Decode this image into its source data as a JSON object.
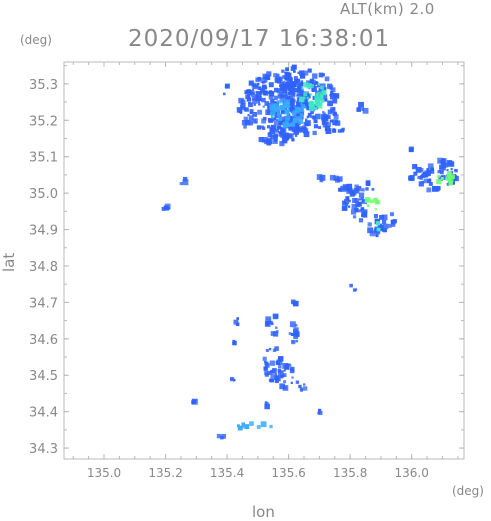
{
  "header": {
    "altitude_label": "ALT(km)  2.0",
    "timestamp": "2020/09/17  16:38:01"
  },
  "axes": {
    "y_unit": "(deg)",
    "x_unit": "(deg)",
    "y_label": "lat",
    "x_label": "lon"
  },
  "chart_data": {
    "type": "heatmap",
    "xlim": [
      134.87,
      136.17
    ],
    "ylim": [
      34.27,
      35.36
    ],
    "x_ticks": [
      "135.0",
      "135.2",
      "135.4",
      "135.6",
      "135.8",
      "136.0"
    ],
    "x_tick_values": [
      135.0,
      135.2,
      135.4,
      135.6,
      135.8,
      136.0
    ],
    "y_ticks": [
      "34.3",
      "34.4",
      "34.5",
      "34.6",
      "34.7",
      "34.8",
      "34.9",
      "35.0",
      "35.1",
      "35.2",
      "35.3"
    ],
    "y_tick_values": [
      34.3,
      34.4,
      34.5,
      34.6,
      34.7,
      34.8,
      34.9,
      35.0,
      35.1,
      35.2,
      35.3
    ],
    "grid": false,
    "colors": {
      "weak": "#2f62ff",
      "moderate": "#38aaff",
      "strong": "#40e8c0",
      "peak": "#70ff70"
    },
    "echo_regions": [
      {
        "lon": 135.56,
        "lat": 35.23,
        "rlon": 0.12,
        "rlat": 0.1,
        "level": "weak"
      },
      {
        "lon": 135.66,
        "lat": 35.25,
        "rlon": 0.1,
        "rlat": 0.09,
        "level": "weak"
      },
      {
        "lon": 135.6,
        "lat": 35.32,
        "rlon": 0.04,
        "rlat": 0.03,
        "level": "weak"
      },
      {
        "lon": 135.6,
        "lat": 35.22,
        "rlon": 0.06,
        "rlat": 0.04,
        "level": "moderate"
      },
      {
        "lon": 135.68,
        "lat": 35.27,
        "rlon": 0.04,
        "rlat": 0.04,
        "level": "strong"
      },
      {
        "lon": 135.49,
        "lat": 35.27,
        "rlon": 0.025,
        "rlat": 0.035,
        "level": "weak"
      },
      {
        "lon": 135.75,
        "lat": 35.19,
        "rlon": 0.035,
        "rlat": 0.03,
        "level": "weak"
      },
      {
        "lon": 135.4,
        "lat": 35.28,
        "rlon": 0.012,
        "rlat": 0.014,
        "level": "weak"
      },
      {
        "lon": 135.84,
        "lat": 35.23,
        "rlon": 0.015,
        "rlat": 0.015,
        "level": "weak"
      },
      {
        "lon": 135.82,
        "lat": 34.97,
        "rlon": 0.04,
        "rlat": 0.05,
        "level": "weak"
      },
      {
        "lon": 135.87,
        "lat": 34.97,
        "rlon": 0.02,
        "rlat": 0.02,
        "level": "peak"
      },
      {
        "lon": 135.89,
        "lat": 34.91,
        "rlon": 0.03,
        "rlat": 0.03,
        "level": "weak"
      },
      {
        "lon": 135.89,
        "lat": 34.91,
        "rlon": 0.012,
        "rlat": 0.012,
        "level": "strong"
      },
      {
        "lon": 135.93,
        "lat": 34.93,
        "rlon": 0.02,
        "rlat": 0.02,
        "level": "weak"
      },
      {
        "lon": 135.79,
        "lat": 35.0,
        "rlon": 0.03,
        "rlat": 0.02,
        "level": "weak"
      },
      {
        "lon": 135.73,
        "lat": 35.04,
        "rlon": 0.04,
        "rlat": 0.01,
        "level": "weak"
      },
      {
        "lon": 136.08,
        "lat": 35.05,
        "rlon": 0.07,
        "rlat": 0.045,
        "level": "weak"
      },
      {
        "lon": 136.11,
        "lat": 35.04,
        "rlon": 0.025,
        "rlat": 0.02,
        "level": "peak"
      },
      {
        "lon": 136.0,
        "lat": 35.06,
        "rlon": 0.02,
        "rlat": 0.02,
        "level": "weak"
      },
      {
        "lon": 136.0,
        "lat": 35.12,
        "rlon": 0.006,
        "rlat": 0.006,
        "level": "weak"
      },
      {
        "lon": 135.87,
        "lat": 35.02,
        "rlon": 0.02,
        "rlat": 0.015,
        "level": "weak"
      },
      {
        "lon": 135.26,
        "lat": 35.03,
        "rlon": 0.015,
        "rlat": 0.01,
        "level": "weak"
      },
      {
        "lon": 135.2,
        "lat": 34.96,
        "rlon": 0.014,
        "rlat": 0.018,
        "level": "weak"
      },
      {
        "lon": 135.81,
        "lat": 34.74,
        "rlon": 0.012,
        "rlat": 0.01,
        "level": "weak"
      },
      {
        "lon": 135.55,
        "lat": 34.53,
        "rlon": 0.03,
        "rlat": 0.05,
        "level": "weak"
      },
      {
        "lon": 135.59,
        "lat": 34.5,
        "rlon": 0.025,
        "rlat": 0.04,
        "level": "weak"
      },
      {
        "lon": 135.62,
        "lat": 34.62,
        "rlon": 0.02,
        "rlat": 0.03,
        "level": "weak"
      },
      {
        "lon": 135.55,
        "lat": 34.64,
        "rlon": 0.02,
        "rlat": 0.03,
        "level": "weak"
      },
      {
        "lon": 135.43,
        "lat": 34.65,
        "rlon": 0.008,
        "rlat": 0.012,
        "level": "weak"
      },
      {
        "lon": 135.42,
        "lat": 34.59,
        "rlon": 0.006,
        "rlat": 0.006,
        "level": "weak"
      },
      {
        "lon": 135.42,
        "lat": 34.49,
        "rlon": 0.006,
        "rlat": 0.006,
        "level": "weak"
      },
      {
        "lon": 135.64,
        "lat": 34.47,
        "rlon": 0.015,
        "rlat": 0.02,
        "level": "weak"
      },
      {
        "lon": 135.47,
        "lat": 34.36,
        "rlon": 0.04,
        "rlat": 0.008,
        "level": "moderate"
      },
      {
        "lon": 135.52,
        "lat": 34.36,
        "rlon": 0.03,
        "rlat": 0.006,
        "level": "moderate"
      },
      {
        "lon": 135.38,
        "lat": 34.33,
        "rlon": 0.01,
        "rlat": 0.006,
        "level": "weak"
      },
      {
        "lon": 135.29,
        "lat": 34.43,
        "rlon": 0.006,
        "rlat": 0.006,
        "level": "weak"
      },
      {
        "lon": 135.53,
        "lat": 34.42,
        "rlon": 0.006,
        "rlat": 0.006,
        "level": "weak"
      },
      {
        "lon": 135.7,
        "lat": 34.4,
        "rlon": 0.005,
        "rlat": 0.005,
        "level": "weak"
      },
      {
        "lon": 135.62,
        "lat": 34.7,
        "rlon": 0.005,
        "rlat": 0.01,
        "level": "weak"
      }
    ]
  }
}
